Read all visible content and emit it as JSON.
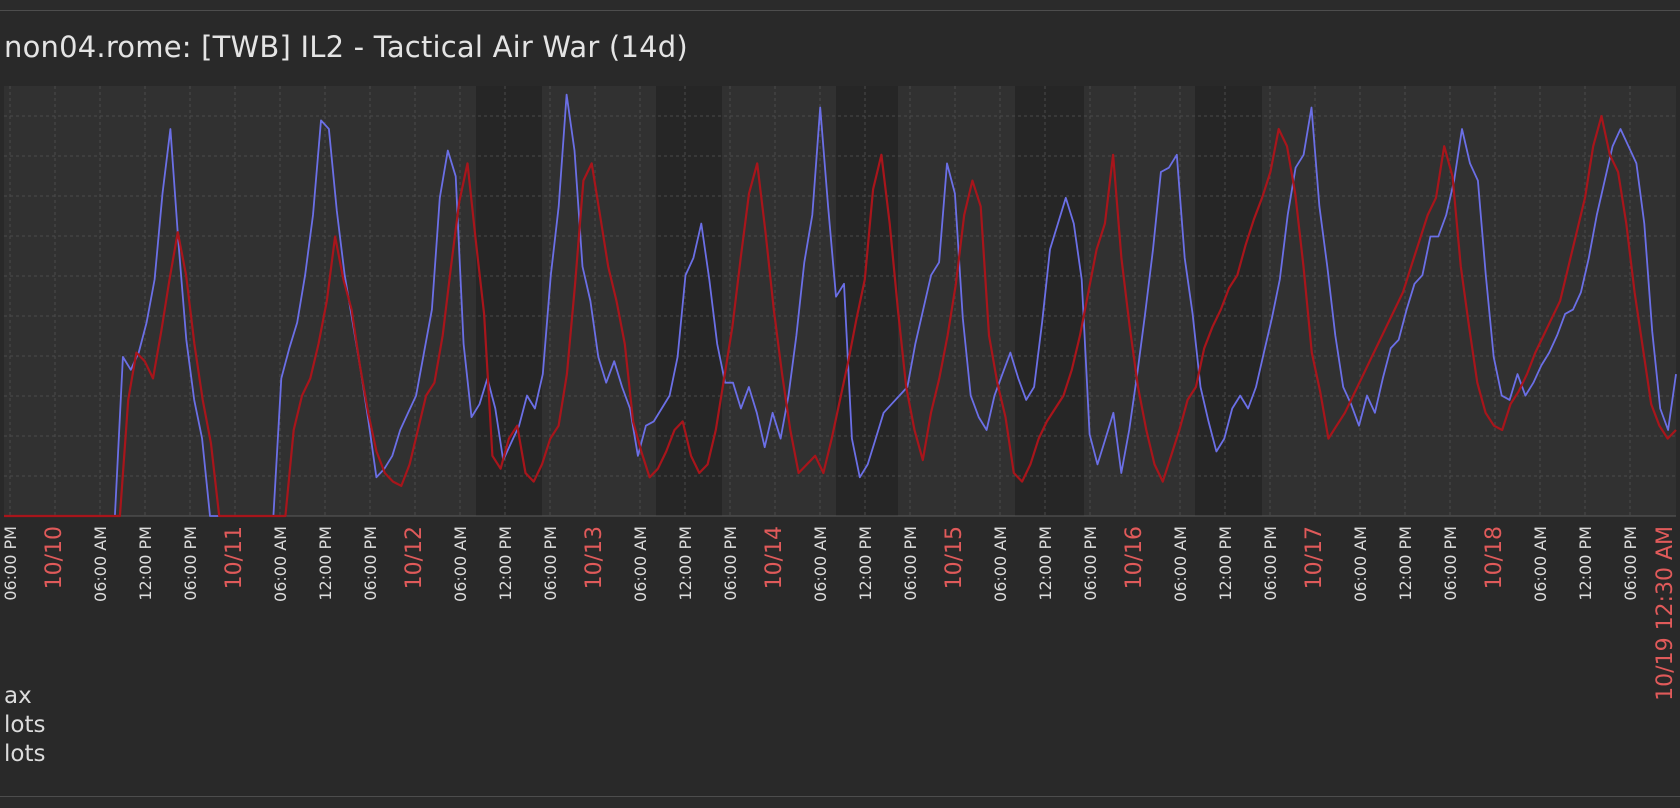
{
  "window": {
    "title": "non04.rome: [TWB] IL2 - Tactical Air War (14d)"
  },
  "colors": {
    "background": "#292929",
    "plot_bg_day": "#313131",
    "plot_bg_night": "#262626",
    "series_blue": "#6b6fe6",
    "series_red": "#a8151b",
    "date_label": "#e05a5a",
    "time_label": "#dcdcdc",
    "grid": "#4a4a4a"
  },
  "legend": {
    "items": [
      "ax",
      "lots",
      "lots"
    ]
  },
  "chart_data": {
    "type": "line",
    "title": "non04.rome: [TWB] IL2 - Tactical Air War (14d)",
    "xlabel": "",
    "ylabel": "",
    "ylim": [
      0,
      100
    ],
    "grid": true,
    "x_start": "10/09 06:00 PM",
    "x_end": "10/19 12:30 AM",
    "x_step_hours": 1,
    "x_tick_labels": [
      "06:00 PM",
      "10/10",
      "06:00 AM",
      "12:00 PM",
      "06:00 PM",
      "10/11",
      "06:00 AM",
      "12:00 PM",
      "06:00 PM",
      "10/12",
      "06:00 AM",
      "12:00 PM",
      "06:00 PM",
      "10/13",
      "06:00 AM",
      "12:00 PM",
      "06:00 PM",
      "10/14",
      "06:00 AM",
      "12:00 PM",
      "06:00 PM",
      "10/15",
      "06:00 AM",
      "12:00 PM",
      "06:00 PM",
      "10/16",
      "06:00 AM",
      "12:00 PM",
      "06:00 PM",
      "10/17",
      "06:00 AM",
      "12:00 PM",
      "06:00 PM",
      "10/18",
      "06:00 AM",
      "12:00 PM",
      "06:00 PM",
      "10/19 12:30 AM"
    ],
    "series": [
      {
        "name": "ax",
        "color": "#6b6fe6",
        "values": [
          0,
          0,
          0,
          0,
          0,
          0,
          0,
          0,
          0,
          0,
          0,
          0,
          0,
          0,
          0,
          37,
          34,
          38,
          45,
          55,
          75,
          90,
          64,
          41,
          27,
          18,
          0,
          0,
          0,
          0,
          0,
          0,
          0,
          0,
          0,
          32,
          39,
          45,
          56,
          70,
          92,
          90,
          71,
          56,
          45,
          34,
          22,
          9,
          11,
          14,
          20,
          24,
          28,
          38,
          48,
          74,
          85,
          79,
          40,
          23,
          26,
          32,
          25,
          13,
          17,
          21,
          28,
          25,
          33,
          56,
          72,
          98,
          85,
          58,
          50,
          37,
          31,
          36,
          30,
          25,
          14,
          21,
          22,
          25,
          28,
          37,
          56,
          60,
          68,
          55,
          40,
          31,
          31,
          25,
          30,
          24,
          16,
          24,
          18,
          28,
          42,
          59,
          70,
          95,
          72,
          51,
          54,
          18,
          9,
          12,
          18,
          24,
          26,
          28,
          30,
          40,
          48,
          56,
          59,
          82,
          75,
          46,
          28,
          23,
          20,
          28,
          33,
          38,
          32,
          27,
          30,
          45,
          62,
          68,
          74,
          68,
          55,
          19,
          12,
          18,
          24,
          10,
          20,
          33,
          47,
          62,
          80,
          81,
          84,
          60,
          47,
          30,
          22,
          15,
          18,
          25,
          28,
          25,
          30,
          38,
          46,
          55,
          70,
          81,
          84,
          95,
          72,
          58,
          42,
          30,
          26,
          21,
          28,
          24,
          32,
          39,
          41,
          48,
          54,
          56,
          65,
          65,
          70,
          78,
          90,
          82,
          78,
          56,
          37,
          28,
          27,
          33,
          28,
          31,
          35,
          38,
          42,
          47,
          48,
          52,
          60,
          70,
          78,
          86,
          90,
          86,
          82,
          68,
          43,
          25,
          20,
          33
        ]
      },
      {
        "name": "lots",
        "color": "#a8151b",
        "values": [
          0,
          0,
          0,
          0,
          0,
          0,
          0,
          0,
          0,
          0,
          0,
          0,
          0,
          0,
          0,
          27,
          38,
          36,
          32,
          43,
          55,
          66,
          56,
          40,
          27,
          17,
          0,
          0,
          0,
          0,
          0,
          0,
          0,
          0,
          0,
          20,
          28,
          32,
          40,
          50,
          65,
          55,
          48,
          35,
          24,
          15,
          10,
          8,
          7,
          12,
          20,
          28,
          31,
          42,
          58,
          73,
          82,
          64,
          47,
          14,
          11,
          18,
          21,
          10,
          8,
          12,
          18,
          21,
          33,
          54,
          78,
          82,
          70,
          58,
          50,
          40,
          22,
          15,
          9,
          11,
          15,
          20,
          22,
          14,
          10,
          12,
          20,
          32,
          44,
          60,
          75,
          82,
          66,
          48,
          33,
          20,
          10,
          12,
          14,
          10,
          18,
          27,
          36,
          46,
          55,
          76,
          84,
          68,
          48,
          30,
          20,
          13,
          24,
          32,
          42,
          54,
          70,
          78,
          72,
          42,
          31,
          23,
          10,
          8,
          12,
          18,
          22,
          25,
          28,
          34,
          42,
          52,
          62,
          68,
          84,
          60,
          44,
          30,
          20,
          12,
          8,
          14,
          20,
          27,
          30,
          39,
          44,
          48,
          53,
          56,
          63,
          69,
          74,
          80,
          90,
          86,
          75,
          58,
          38,
          29,
          18,
          21,
          24,
          28,
          32,
          36,
          40,
          44,
          48,
          52,
          58,
          64,
          70,
          74,
          86,
          79,
          58,
          44,
          31,
          24,
          21,
          20,
          26,
          29,
          33,
          38,
          42,
          46,
          50,
          58,
          66,
          74,
          86,
          93,
          84,
          80,
          68,
          52,
          39,
          26,
          21,
          18,
          20
        ]
      }
    ]
  }
}
